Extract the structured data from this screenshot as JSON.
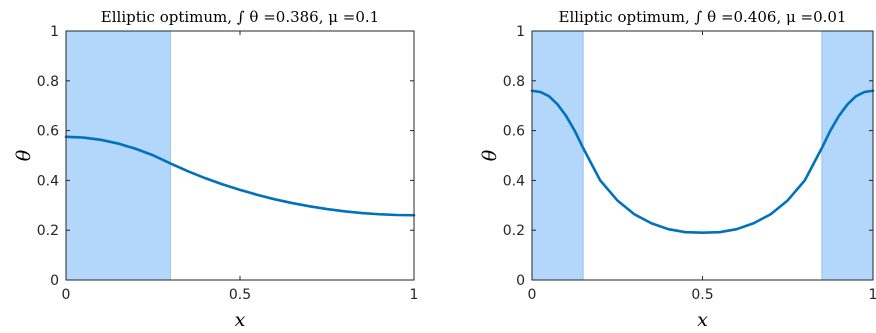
{
  "chart_data": [
    {
      "type": "line",
      "title": "Elliptic optimum, ∫ θ =0.386, μ =0.1",
      "xlabel": "x",
      "ylabel": "θ",
      "xlim": [
        0,
        1
      ],
      "ylim": [
        0,
        1
      ],
      "xticks": [
        "0",
        "0.5",
        "1"
      ],
      "yticks": [
        "0",
        "0.2",
        "0.4",
        "0.6",
        "0.8",
        "1"
      ],
      "shaded_regions": [
        [
          0,
          0.3
        ]
      ],
      "region_color": "#b3d6fb",
      "line_color": "#0072bd",
      "series": [
        {
          "x": [
            0,
            0.05,
            0.1,
            0.15,
            0.2,
            0.25,
            0.3,
            0.35,
            0.4,
            0.45,
            0.5,
            0.55,
            0.6,
            0.65,
            0.7,
            0.75,
            0.8,
            0.85,
            0.9,
            0.95,
            1.0
          ],
          "y": [
            0.575,
            0.572,
            0.563,
            0.548,
            0.527,
            0.501,
            0.468,
            0.437,
            0.409,
            0.384,
            0.362,
            0.342,
            0.324,
            0.309,
            0.296,
            0.285,
            0.276,
            0.269,
            0.264,
            0.261,
            0.26
          ]
        }
      ]
    },
    {
      "type": "line",
      "title": "Elliptic optimum, ∫ θ =0.406, μ =0.01",
      "xlabel": "x",
      "ylabel": "θ",
      "xlim": [
        0,
        1
      ],
      "ylim": [
        0,
        1
      ],
      "xticks": [
        "0",
        "0.5",
        "1"
      ],
      "yticks": [
        "0",
        "0.2",
        "0.4",
        "0.6",
        "0.8",
        "1"
      ],
      "shaded_regions": [
        [
          0,
          0.15
        ],
        [
          0.85,
          1
        ]
      ],
      "region_color": "#b3d6fb",
      "line_color": "#0072bd",
      "series": [
        {
          "x": [
            0,
            0.025,
            0.05,
            0.075,
            0.1,
            0.125,
            0.15,
            0.2,
            0.25,
            0.3,
            0.35,
            0.4,
            0.45,
            0.5,
            0.55,
            0.6,
            0.65,
            0.7,
            0.75,
            0.8,
            0.85,
            0.875,
            0.9,
            0.925,
            0.95,
            0.975,
            1.0
          ],
          "y": [
            0.76,
            0.755,
            0.738,
            0.705,
            0.659,
            0.6,
            0.53,
            0.4,
            0.32,
            0.264,
            0.228,
            0.204,
            0.192,
            0.19,
            0.192,
            0.204,
            0.228,
            0.264,
            0.32,
            0.4,
            0.53,
            0.6,
            0.659,
            0.705,
            0.738,
            0.755,
            0.76
          ]
        }
      ]
    }
  ]
}
